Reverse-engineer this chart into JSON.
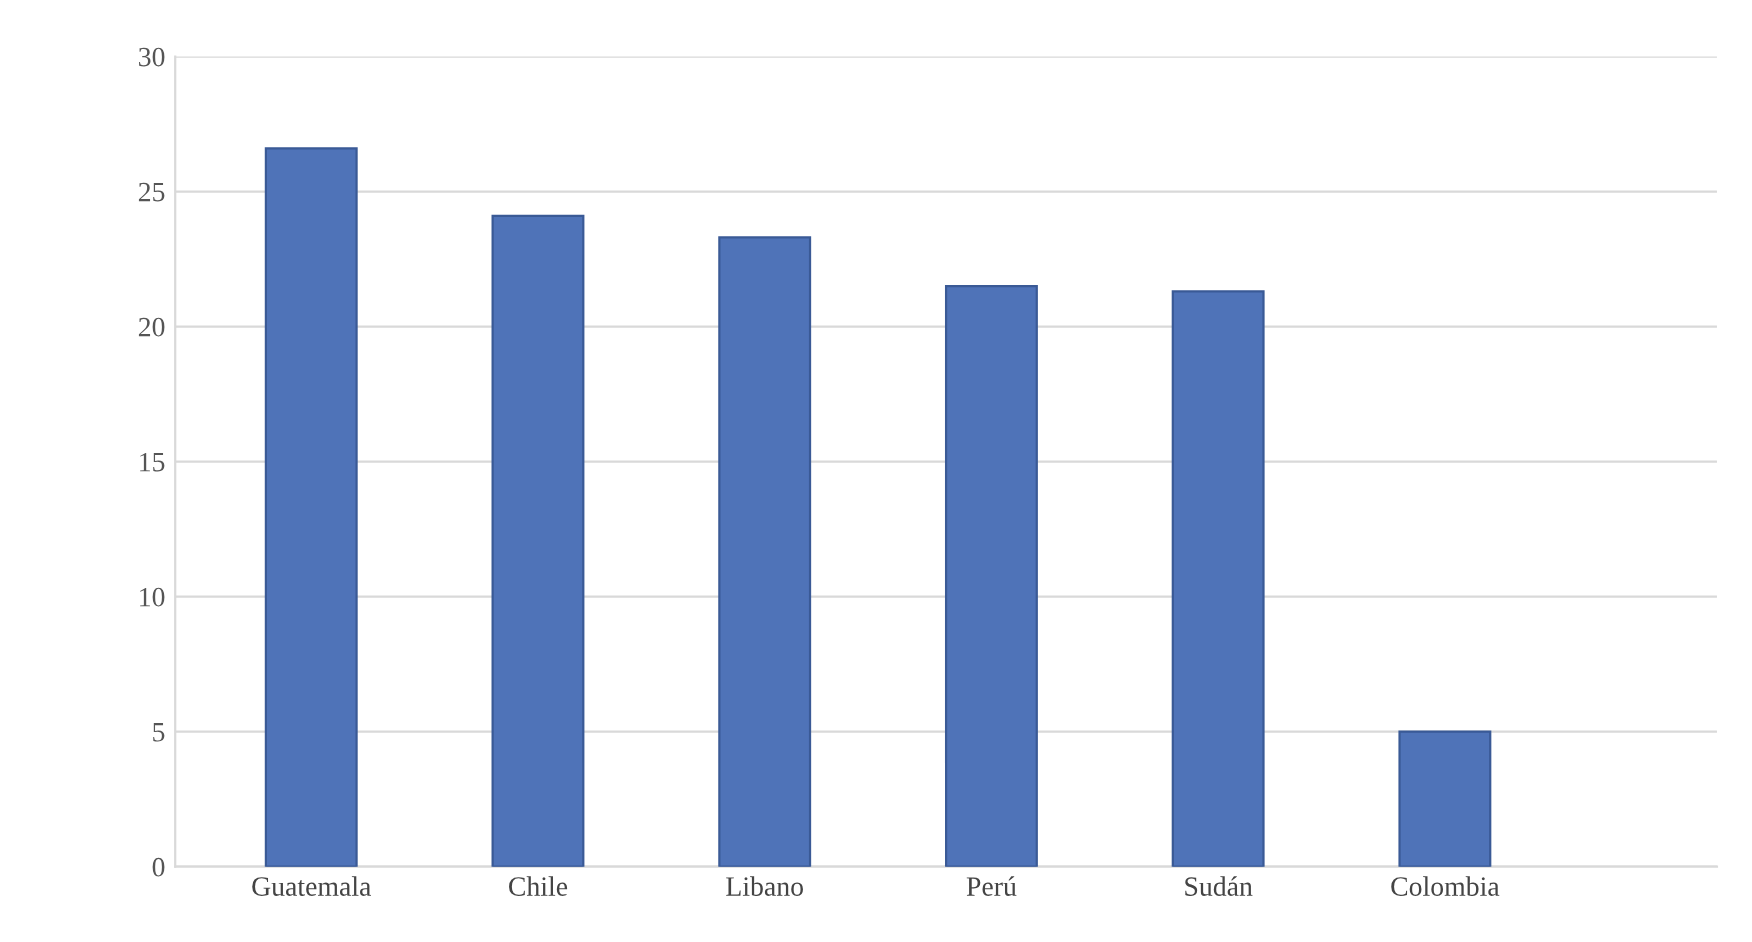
{
  "chart_data": {
    "type": "bar",
    "categories": [
      "Guatemala",
      "Chile",
      "Libano",
      "Perú",
      "Sudán",
      "Colombia"
    ],
    "values": [
      26.6,
      24.1,
      23.3,
      21.5,
      21.3,
      5.0
    ],
    "color": "#4f73b8",
    "ylim": [
      0,
      30
    ],
    "yticks": [
      0,
      5,
      10,
      15,
      20,
      25,
      30
    ],
    "grid": "y",
    "legend": false
  }
}
